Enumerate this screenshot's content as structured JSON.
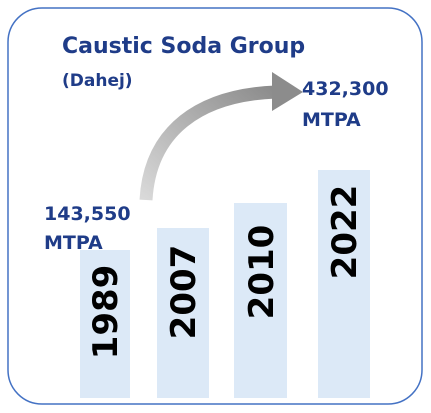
{
  "title": "Caustic Soda Group",
  "subtitle": "(Dahej)",
  "bars": [
    {
      "label": "1989"
    },
    {
      "label": "2007"
    },
    {
      "label": "2010"
    },
    {
      "label": "2022"
    }
  ],
  "annotations": [
    {
      "value": "143,550",
      "unit": "MTPA"
    },
    {
      "value": "432,300",
      "unit": "MTPA"
    }
  ]
}
